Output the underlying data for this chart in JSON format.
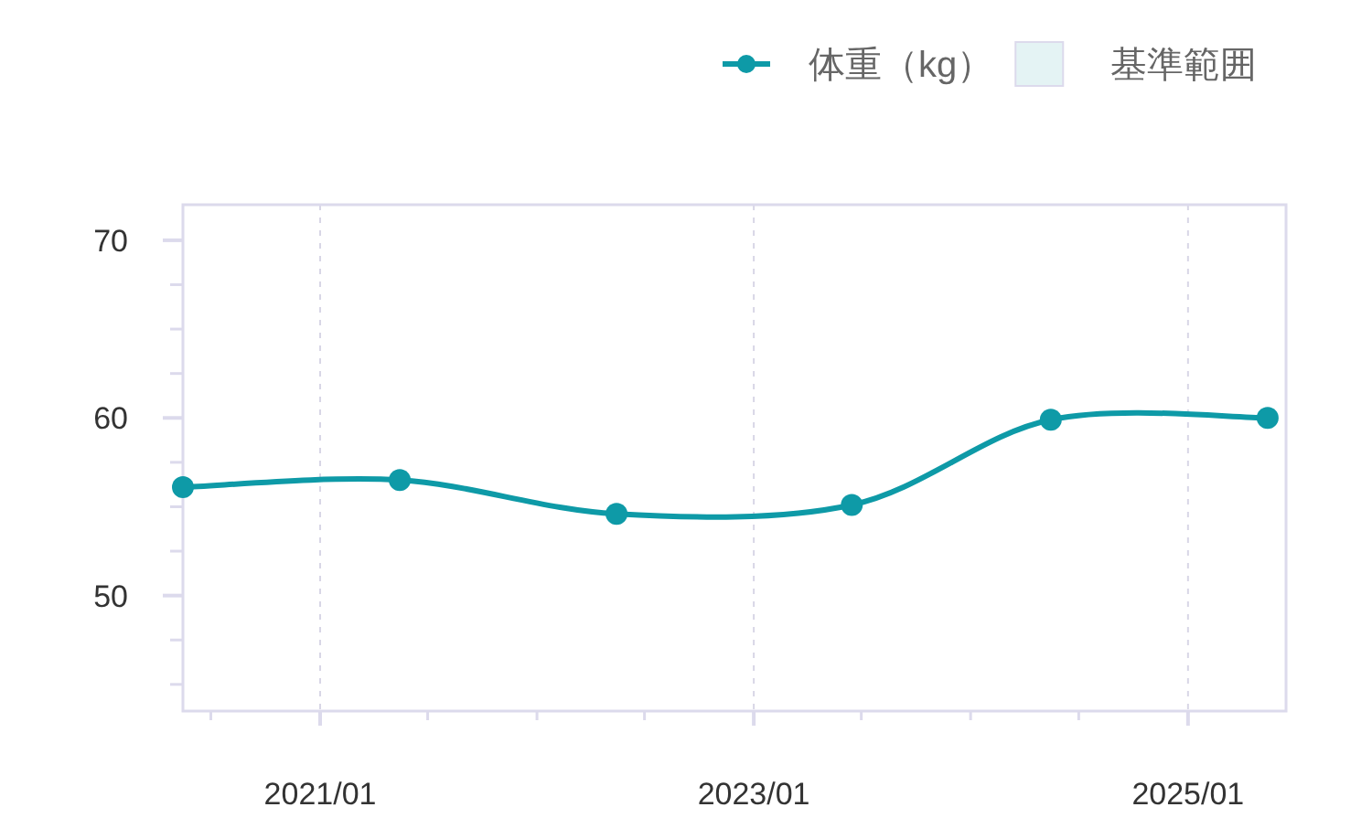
{
  "chart_data": {
    "type": "line",
    "x": [
      "2020-05-15",
      "2021-05-15",
      "2022-05-15",
      "2023-06-15",
      "2024-05-15",
      "2025-05-15"
    ],
    "series": [
      {
        "name": "体重（kg）",
        "color": "#0e9aa7",
        "values": [
          56.1,
          56.5,
          54.6,
          55.1,
          59.9,
          60.0
        ]
      },
      {
        "name": "基準範囲",
        "type": "area",
        "color": "#e4f3f4",
        "values": [
          null,
          null,
          null,
          null,
          null,
          null
        ]
      }
    ],
    "xlim": [
      "2020-05-15",
      "2025-06-15"
    ],
    "xticks": [
      {
        "value": "2020-07",
        "label": null
      },
      {
        "value": "2021-01",
        "label": "2021/01"
      },
      {
        "value": "2021-07",
        "label": null
      },
      {
        "value": "2022-01",
        "label": null
      },
      {
        "value": "2022-07",
        "label": null
      },
      {
        "value": "2023-01",
        "label": "2023/01"
      },
      {
        "value": "2023-07",
        "label": null
      },
      {
        "value": "2024-01",
        "label": null
      },
      {
        "value": "2024-07",
        "label": null
      },
      {
        "value": "2025-01",
        "label": "2025/01"
      }
    ],
    "ylim": [
      43.5,
      72
    ],
    "yticks": [
      {
        "value": 45,
        "label": null
      },
      {
        "value": 47.5,
        "label": null
      },
      50,
      {
        "value": 52.5,
        "label": null
      },
      {
        "value": 55,
        "label": null
      },
      {
        "value": 57.5,
        "label": null
      },
      60,
      {
        "value": 62.5,
        "label": null
      },
      {
        "value": 65,
        "label": null
      },
      {
        "value": 67.5,
        "label": null
      },
      70
    ],
    "grid": "x",
    "legend": "top right",
    "marker": "circle",
    "line_style": "solid"
  }
}
